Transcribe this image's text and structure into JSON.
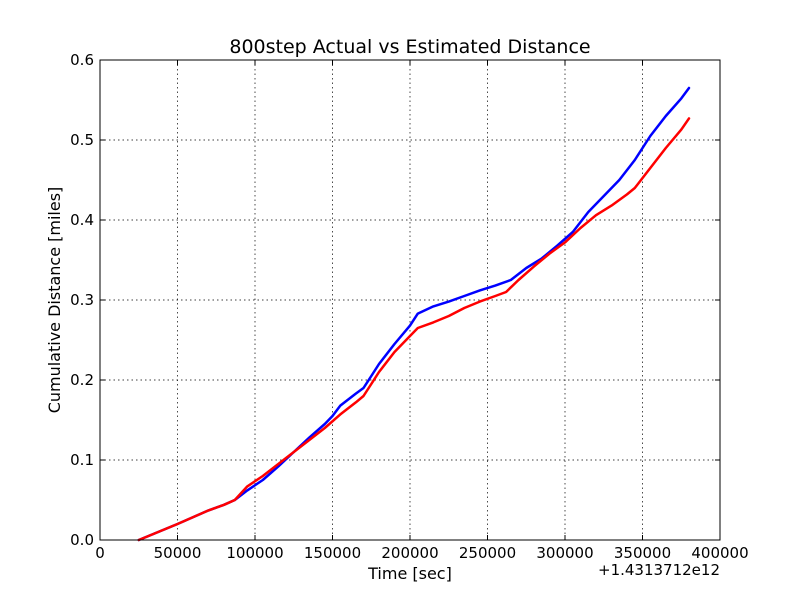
{
  "chart_data": {
    "type": "line",
    "title": "800step Actual vs Estimated Distance",
    "xlabel": "Time [sec]",
    "ylabel": "Cumulative Distance [miles]",
    "x_offset_label": "+1.4313712e12",
    "xlim": [
      0,
      400000
    ],
    "ylim": [
      0,
      0.6
    ],
    "x_ticks": [
      0,
      50000,
      100000,
      150000,
      200000,
      250000,
      300000,
      350000,
      400000
    ],
    "x_tick_labels": [
      "0",
      "50000",
      "100000",
      "150000",
      "200000",
      "250000",
      "300000",
      "350000",
      "400000"
    ],
    "y_ticks": [
      0.0,
      0.1,
      0.2,
      0.3,
      0.4,
      0.5,
      0.6
    ],
    "y_tick_labels": [
      "0.0",
      "0.1",
      "0.2",
      "0.3",
      "0.4",
      "0.5",
      "0.6"
    ],
    "grid": true,
    "series": [
      {
        "color": "#0000ff",
        "x": [
          25000,
          50000,
          70000,
          80000,
          87000,
          95000,
          105000,
          115000,
          125000,
          135000,
          145000,
          150000,
          155000,
          165000,
          170000,
          175000,
          180000,
          190000,
          200000,
          205000,
          215000,
          225000,
          235000,
          245000,
          255000,
          265000,
          275000,
          285000,
          295000,
          305000,
          315000,
          325000,
          335000,
          345000,
          355000,
          365000,
          375000,
          380000
        ],
        "y": [
          0.0,
          0.02,
          0.037,
          0.044,
          0.05,
          0.062,
          0.075,
          0.092,
          0.11,
          0.128,
          0.145,
          0.155,
          0.168,
          0.183,
          0.19,
          0.205,
          0.22,
          0.245,
          0.268,
          0.283,
          0.292,
          0.298,
          0.305,
          0.312,
          0.318,
          0.325,
          0.34,
          0.352,
          0.368,
          0.385,
          0.41,
          0.43,
          0.45,
          0.475,
          0.505,
          0.53,
          0.552,
          0.565
        ]
      },
      {
        "color": "#ff0000",
        "x": [
          25000,
          50000,
          70000,
          80000,
          87000,
          95000,
          105000,
          115000,
          125000,
          135000,
          145000,
          155000,
          165000,
          170000,
          175000,
          180000,
          190000,
          200000,
          205000,
          215000,
          225000,
          235000,
          245000,
          255000,
          262000,
          270000,
          280000,
          290000,
          300000,
          310000,
          320000,
          330000,
          340000,
          345000,
          355000,
          365000,
          375000,
          380000
        ],
        "y": [
          0.0,
          0.02,
          0.037,
          0.044,
          0.05,
          0.067,
          0.08,
          0.095,
          0.11,
          0.125,
          0.14,
          0.157,
          0.172,
          0.18,
          0.195,
          0.21,
          0.235,
          0.255,
          0.265,
          0.272,
          0.28,
          0.29,
          0.298,
          0.305,
          0.31,
          0.325,
          0.342,
          0.358,
          0.372,
          0.39,
          0.406,
          0.418,
          0.432,
          0.44,
          0.465,
          0.49,
          0.513,
          0.527
        ]
      }
    ]
  }
}
